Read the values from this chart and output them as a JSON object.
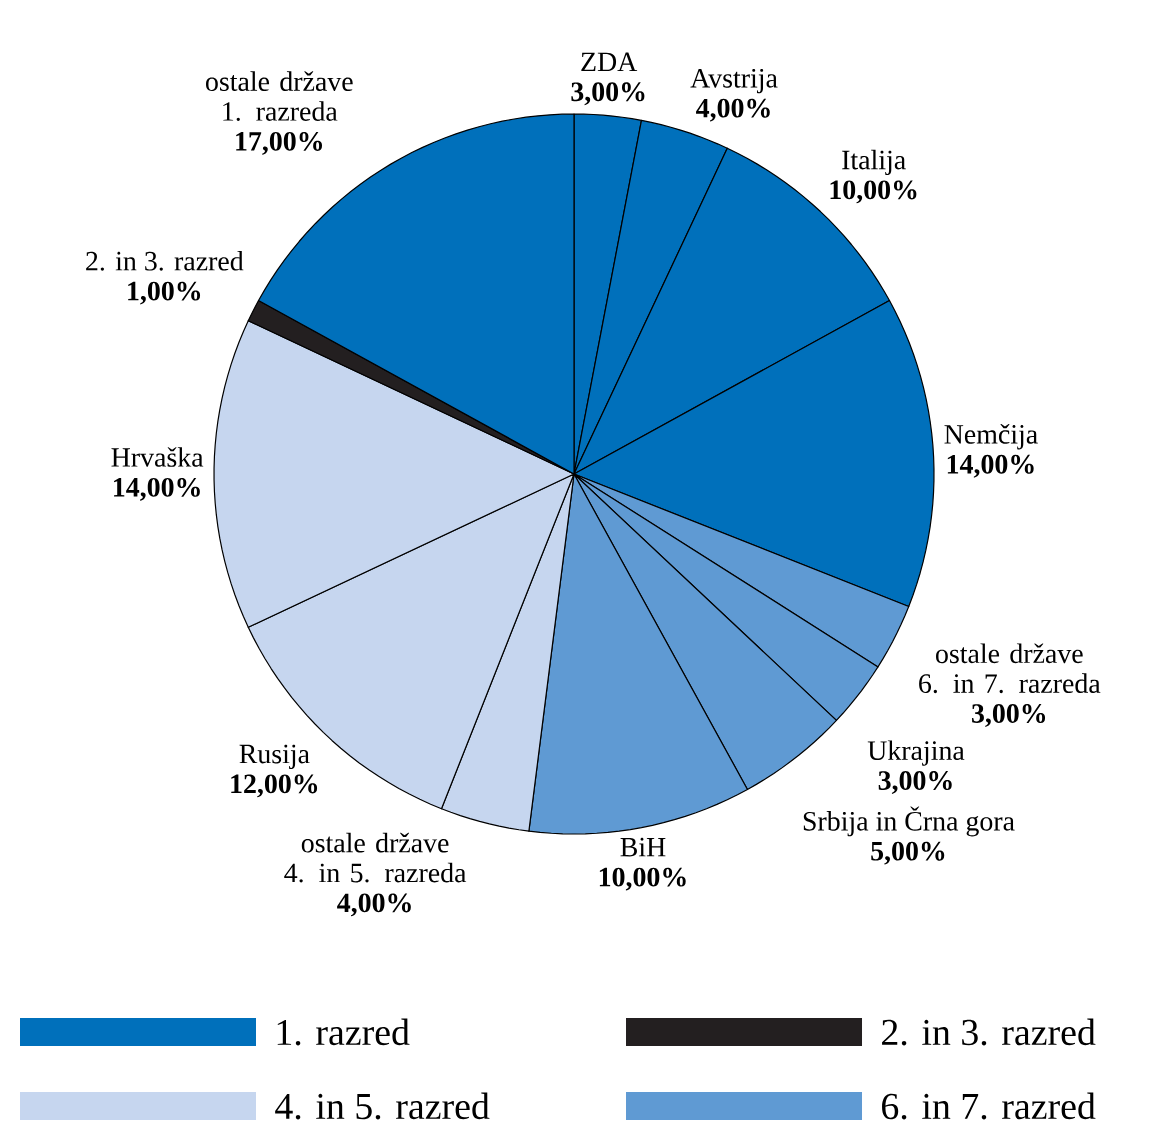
{
  "chart_data": {
    "type": "pie",
    "categories": [
      "ZDA",
      "Avstrija",
      "Italija",
      "Nemčija",
      "ostale države 6. in 7. razreda",
      "Ukrajina",
      "Srbija in Črna gora",
      "BiH",
      "ostale države 4. in 5. razreda",
      "Rusija",
      "Hrvaška",
      "2. in 3. razred",
      "ostale države 1. razreda"
    ],
    "values": [
      3,
      4,
      10,
      14,
      3,
      3,
      5,
      10,
      4,
      12,
      14,
      1,
      17
    ],
    "value_labels": [
      "3,00%",
      "4,00%",
      "10,00%",
      "14,00%",
      "3,00%",
      "3,00%",
      "5,00%",
      "10,00%",
      "4,00%",
      "12,00%",
      "14,00%",
      "1,00%",
      "17,00%"
    ],
    "colors": [
      "#0070bb",
      "#0070bb",
      "#0070bb",
      "#0070bb",
      "#5f9ad3",
      "#5f9ad3",
      "#5f9ad3",
      "#5f9ad3",
      "#c6d6ef",
      "#c6d6ef",
      "#c6d6ef",
      "#231f20",
      "#0070bb"
    ],
    "annotations": [
      "1. razred",
      "2. in 3. razred",
      "4. in 5. razred",
      "6. in 7. razred"
    ]
  }
}
